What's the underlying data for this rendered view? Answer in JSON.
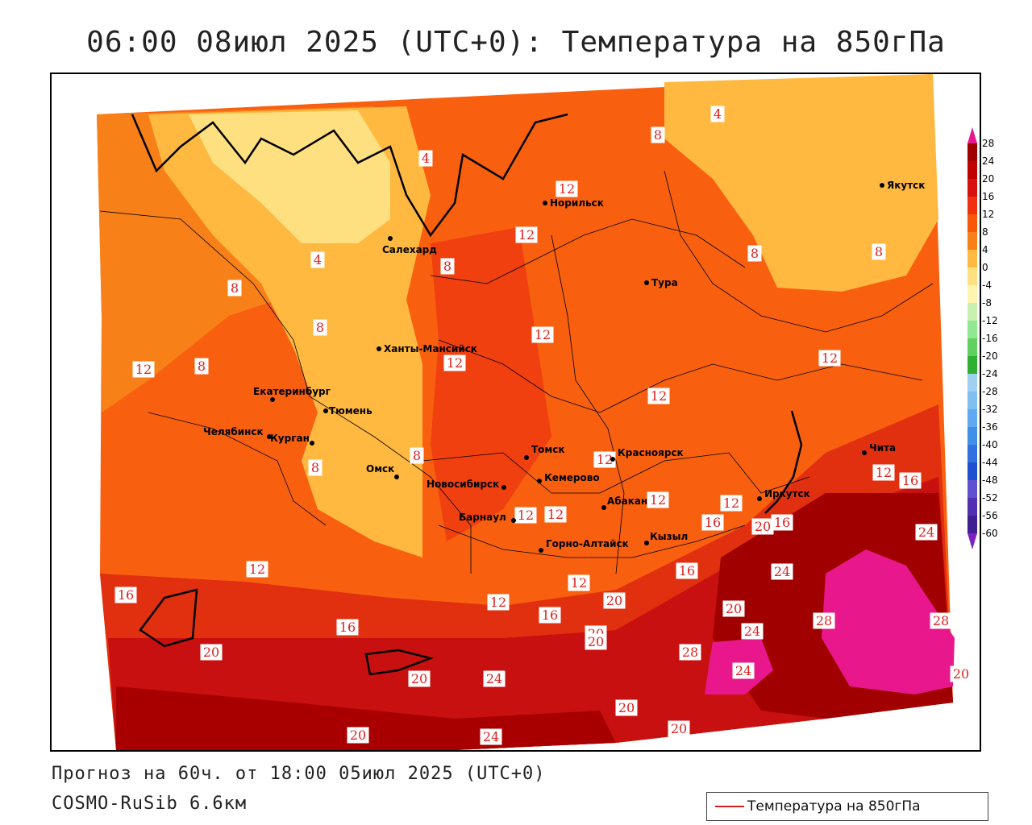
{
  "title": "06:00 08июл 2025 (UTC+0): Температура на 850гПа",
  "forecast": "Прогноз на 60ч. от 18:00 05июл 2025 (UTC+0)",
  "model": "COSMO-RuSib 6.6км",
  "legend": {
    "label": "Температура на 850гПа",
    "line_color": "#e02020"
  },
  "colors": {
    "t28": "#e8188c",
    "t24": "#a00000",
    "t20": "#c81010",
    "t16": "#e03010",
    "t12": "#f85808",
    "t8": "#f88018",
    "t4": "#ffb840",
    "t0": "#ffe080"
  },
  "color_scale": {
    "ticks": [
      "28",
      "24",
      "20",
      "16",
      "12",
      "8",
      "4",
      "0",
      "-4",
      "-8",
      "-12",
      "-16",
      "-20",
      "-24",
      "-28",
      "-32",
      "-36",
      "-40",
      "-44",
      "-48",
      "-52",
      "-56",
      "-60"
    ],
    "band_colors": [
      "#a00000",
      "#c00000",
      "#d81010",
      "#f03010",
      "#f85808",
      "#f88018",
      "#ffb840",
      "#ffe080",
      "#fff5b0",
      "#c8f0b0",
      "#90e890",
      "#60d060",
      "#30b030",
      "#a0d0f0",
      "#80c0f0",
      "#60a8f0",
      "#4090e8",
      "#3070e0",
      "#2050d0",
      "#6050d0",
      "#5030b0",
      "#402090"
    ],
    "top_arrow_color": "#e8188c",
    "bottom_arrow_color": "#8020c0"
  },
  "cities": [
    {
      "name": "Норильск"
    },
    {
      "name": "Якутск"
    },
    {
      "name": "Салехард"
    },
    {
      "name": "Тура"
    },
    {
      "name": "Ханты-Мансийск"
    },
    {
      "name": "Екатеринбург"
    },
    {
      "name": "Тюмень"
    },
    {
      "name": "Челябинск"
    },
    {
      "name": "Курган"
    },
    {
      "name": "Омск"
    },
    {
      "name": "Томск"
    },
    {
      "name": "Красноярск"
    },
    {
      "name": "Новосибирск"
    },
    {
      "name": "Кемерово"
    },
    {
      "name": "Барнаул"
    },
    {
      "name": "Абакан"
    },
    {
      "name": "Горно-Алтайск"
    },
    {
      "name": "Кызыл"
    },
    {
      "name": "Иркутск"
    },
    {
      "name": "Чита"
    }
  ],
  "isotherm_labels": [
    "4",
    "4",
    "4",
    "8",
    "8",
    "12",
    "12",
    "8",
    "8",
    "8",
    "12",
    "12",
    "12",
    "12",
    "12",
    "8",
    "8",
    "12",
    "12",
    "12",
    "8",
    "8",
    "12",
    "16",
    "16",
    "12",
    "20",
    "16",
    "12",
    "12",
    "16",
    "20",
    "24",
    "12",
    "16",
    "12",
    "16",
    "20",
    "20",
    "24",
    "16",
    "28",
    "28",
    "20",
    "24",
    "20",
    "24",
    "28",
    "24",
    "20",
    "20",
    "20",
    "20",
    "24",
    "20"
  ]
}
